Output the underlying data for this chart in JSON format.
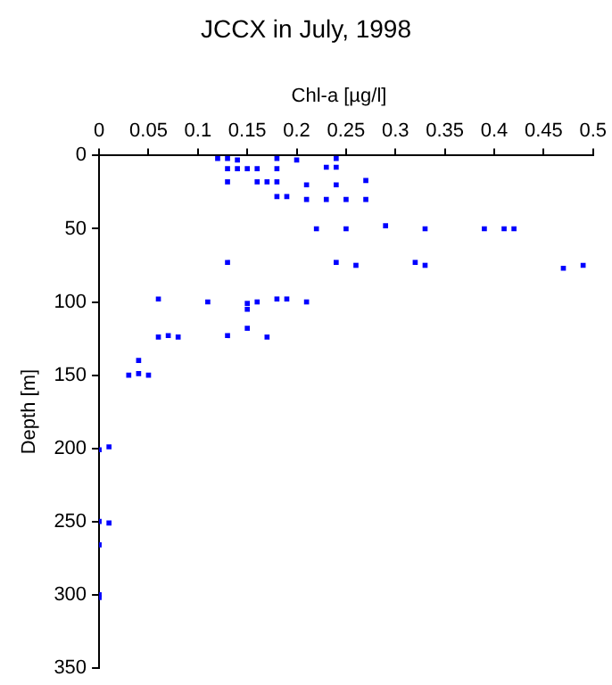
{
  "chart_data": {
    "type": "scatter",
    "title": "JCCX in July, 1998",
    "xlabel": "Chl-a [µg/l]",
    "ylabel": "Depth [m]",
    "xlim": [
      0,
      0.5
    ],
    "xticks": [
      0,
      0.05,
      0.1,
      0.15,
      0.2,
      0.25,
      0.3,
      0.35,
      0.4,
      0.45,
      0.5
    ],
    "ylim": [
      350,
      0
    ],
    "yticks": [
      0,
      50,
      100,
      150,
      200,
      250,
      300,
      350
    ],
    "grid": false,
    "legend": false,
    "marker": "square",
    "series": [
      {
        "color": "#0000ff",
        "x": [
          0.12,
          0.13,
          0.14,
          0.18,
          0.2,
          0.24,
          0.23,
          0.24,
          0.13,
          0.14,
          0.15,
          0.16,
          0.18,
          0.27,
          0.13,
          0.16,
          0.17,
          0.18,
          0.21,
          0.24,
          0.18,
          0.19,
          0.21,
          0.23,
          0.25,
          0.27,
          0.29,
          0.22,
          0.25,
          0.33,
          0.39,
          0.41,
          0.42,
          0.13,
          0.24,
          0.32,
          0.26,
          0.33,
          0.47,
          0.49,
          0.06,
          0.18,
          0.19,
          0.11,
          0.16,
          0.21,
          0.15,
          0.15,
          0.15,
          0.07,
          0.13,
          0.06,
          0.08,
          0.17,
          0.04,
          0.03,
          0.04,
          0.05,
          0,
          0.01,
          0,
          0.01,
          0,
          0,
          0
        ],
        "values": [
          2,
          2,
          3,
          2,
          3,
          2,
          8,
          8,
          9,
          9,
          9,
          9,
          9,
          17,
          18,
          18,
          18,
          18,
          20,
          20,
          28,
          28,
          30,
          30,
          30,
          30,
          48,
          50,
          50,
          50,
          50,
          50,
          50,
          73,
          73,
          73,
          75,
          75,
          77,
          75,
          98,
          98,
          98,
          100,
          100,
          100,
          101,
          105,
          118,
          123,
          123,
          124,
          124,
          124,
          140,
          150,
          149,
          150,
          201,
          199,
          250,
          251,
          266,
          300,
          302
        ]
      }
    ]
  }
}
